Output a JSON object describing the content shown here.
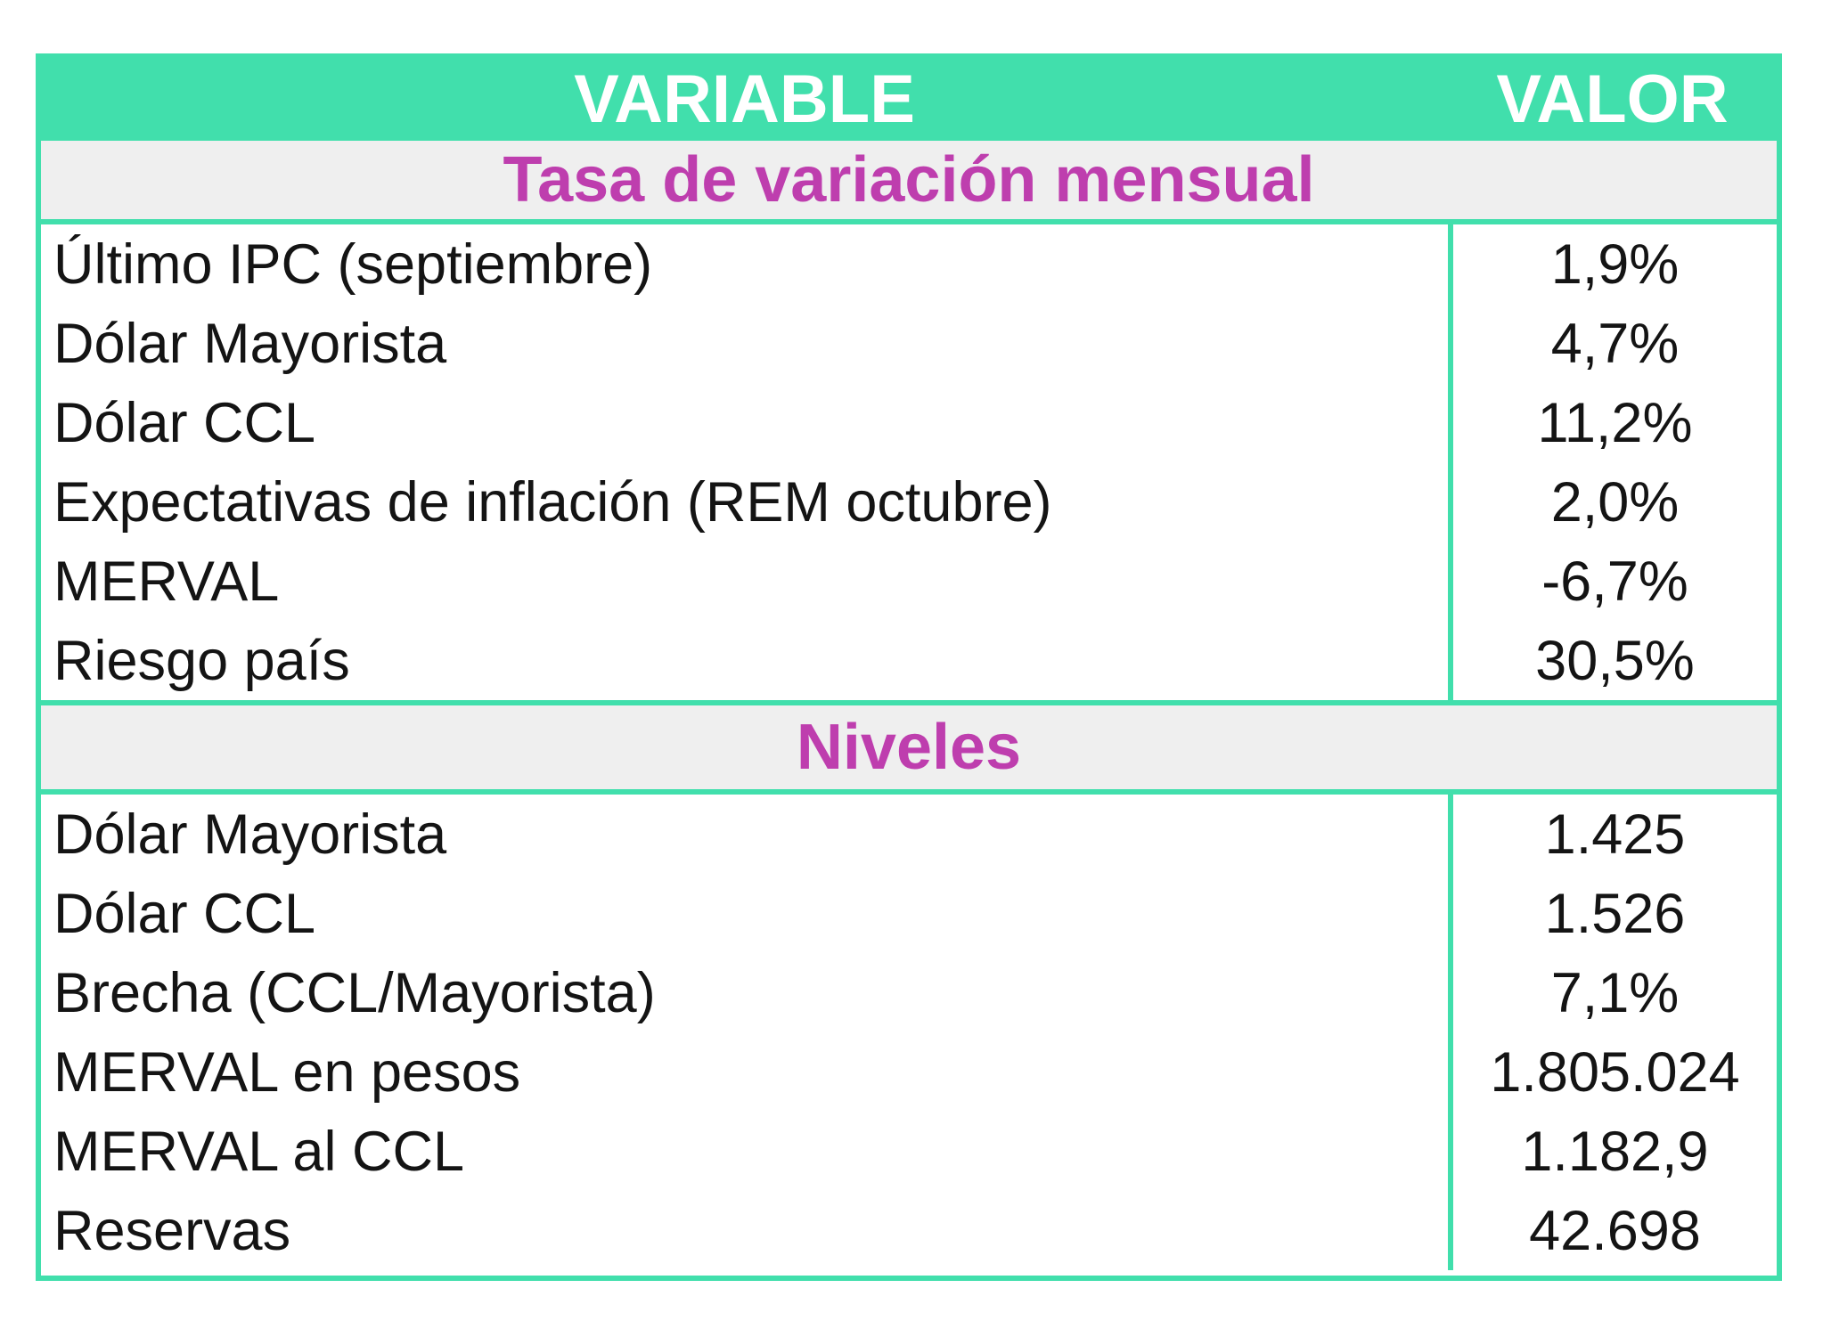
{
  "chart_data": {
    "type": "table",
    "columns": [
      "VARIABLE",
      "VALOR"
    ],
    "sections": [
      {
        "title": "Tasa de variación mensual",
        "rows": [
          {
            "variable": "Último IPC (septiembre)",
            "value": "1,9%"
          },
          {
            "variable": "Dólar Mayorista",
            "value": "4,7%"
          },
          {
            "variable": "Dólar CCL",
            "value": "11,2%"
          },
          {
            "variable": "Expectativas de inflación (REM octubre)",
            "value": "2,0%"
          },
          {
            "variable": "MERVAL",
            "value": "-6,7%"
          },
          {
            "variable": "Riesgo país",
            "value": "30,5%"
          }
        ]
      },
      {
        "title": "Niveles",
        "rows": [
          {
            "variable": "Dólar Mayorista",
            "value": "1.425"
          },
          {
            "variable": "Dólar CCL",
            "value": "1.526"
          },
          {
            "variable": "Brecha (CCL/Mayorista)",
            "value": "7,1%"
          },
          {
            "variable": "MERVAL en pesos",
            "value": "1.805.024"
          },
          {
            "variable": "MERVAL al CCL",
            "value": "1.182,9"
          },
          {
            "variable": "Reservas",
            "value": "42.698"
          }
        ]
      }
    ],
    "layout_hints": {
      "header_bg": "#41DFAC",
      "header_text_color": "#FFFFFF",
      "section_title_color": "#BE3EAE",
      "section_bg": "#EFEFEF",
      "body_text_color": "#141414",
      "border_color": "#41DFAC",
      "value_column_align": "center",
      "variable_column_align": "left"
    }
  }
}
